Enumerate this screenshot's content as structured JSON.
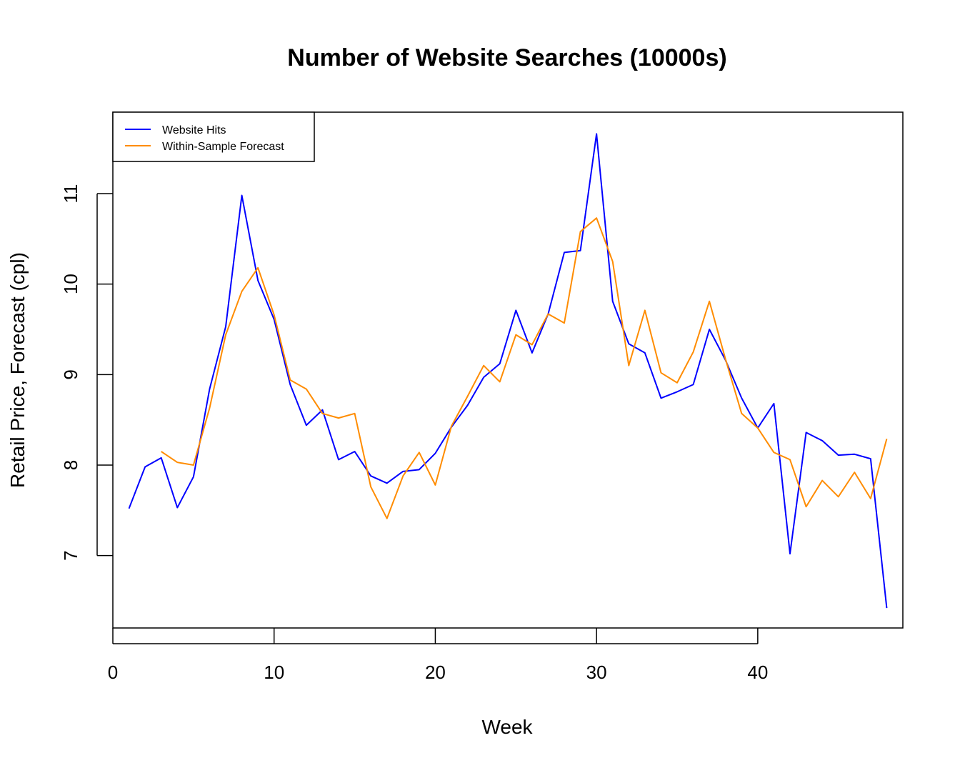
{
  "chart_data": {
    "type": "line",
    "title": "Number of Website Searches (10000s)",
    "xlabel": "Week",
    "ylabel": "Retail Price, Forecast (cpl)",
    "xlim": [
      0,
      49
    ],
    "ylim": [
      6.2,
      11.9
    ],
    "xticks": [
      0,
      10,
      20,
      30,
      40
    ],
    "yticks": [
      7,
      8,
      9,
      10,
      11
    ],
    "xtick_labels": [
      "0",
      "10",
      "20",
      "30",
      "40"
    ],
    "ytick_labels": [
      "7",
      "8",
      "9",
      "10",
      "11"
    ],
    "grid": false,
    "legend_position": "top-left",
    "series": [
      {
        "name": "Website Hits",
        "color": "#0000ff",
        "x": [
          1,
          2,
          3,
          4,
          5,
          6,
          7,
          8,
          9,
          10,
          11,
          12,
          13,
          14,
          15,
          16,
          17,
          18,
          19,
          20,
          21,
          22,
          23,
          24,
          25,
          26,
          27,
          28,
          29,
          30,
          31,
          32,
          33,
          34,
          35,
          36,
          37,
          38,
          39,
          40,
          41,
          42,
          43,
          44,
          45,
          46,
          47,
          48
        ],
        "values": [
          7.52,
          7.98,
          8.08,
          7.53,
          7.87,
          8.84,
          9.53,
          10.98,
          10.04,
          9.61,
          8.89,
          8.44,
          8.61,
          8.06,
          8.15,
          7.88,
          7.8,
          7.93,
          7.95,
          8.13,
          8.42,
          8.66,
          8.97,
          9.12,
          9.71,
          9.24,
          9.67,
          10.35,
          10.37,
          11.66,
          9.81,
          9.34,
          9.24,
          8.74,
          8.81,
          8.89,
          9.5,
          9.16,
          8.74,
          8.41,
          8.68,
          7.02,
          8.36,
          8.27,
          8.11,
          8.12,
          8.07,
          6.42
        ]
      },
      {
        "name": "Within-Sample Forecast",
        "color": "#ff8c00",
        "x": [
          3,
          4,
          5,
          6,
          7,
          8,
          9,
          10,
          11,
          12,
          13,
          14,
          15,
          16,
          17,
          18,
          19,
          20,
          21,
          22,
          23,
          24,
          25,
          26,
          27,
          28,
          29,
          30,
          31,
          32,
          33,
          34,
          35,
          36,
          37,
          38,
          39,
          40,
          41,
          42,
          43,
          44,
          45,
          46,
          47,
          48
        ],
        "values": [
          8.15,
          8.03,
          8.0,
          8.63,
          9.44,
          9.92,
          10.18,
          9.66,
          8.94,
          8.84,
          8.57,
          8.52,
          8.57,
          7.76,
          7.41,
          7.88,
          8.14,
          7.78,
          8.43,
          8.76,
          9.1,
          8.92,
          9.44,
          9.33,
          9.67,
          9.57,
          10.58,
          10.73,
          10.25,
          9.1,
          9.71,
          9.02,
          8.91,
          9.25,
          9.81,
          9.17,
          8.57,
          8.41,
          8.14,
          8.06,
          7.54,
          7.83,
          7.65,
          7.92,
          7.63,
          8.29
        ]
      }
    ]
  }
}
